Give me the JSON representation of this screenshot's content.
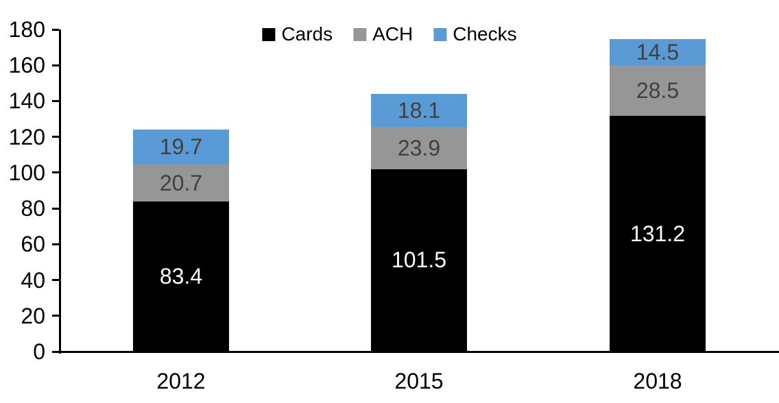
{
  "chart_data": {
    "type": "bar",
    "stacked": true,
    "title": "",
    "xlabel": "",
    "ylabel": "",
    "categories": [
      "2012",
      "2015",
      "2018"
    ],
    "series": [
      {
        "name": "Cards",
        "color": "#000000",
        "label_color": "#ffffff",
        "values": [
          83.4,
          101.5,
          131.2
        ]
      },
      {
        "name": "ACH",
        "color": "#969696",
        "label_color": "#404040",
        "values": [
          20.7,
          23.9,
          28.5
        ]
      },
      {
        "name": "Checks",
        "color": "#5b9bd5",
        "label_color": "#404040",
        "values": [
          19.7,
          18.1,
          14.5
        ]
      }
    ],
    "ylim": [
      0,
      180
    ],
    "yticks": [
      0,
      20,
      40,
      60,
      80,
      100,
      120,
      140,
      160,
      180
    ],
    "grid": false,
    "legend_position": "top-center",
    "axis_color": "#000000",
    "background_color": "#ffffff"
  }
}
